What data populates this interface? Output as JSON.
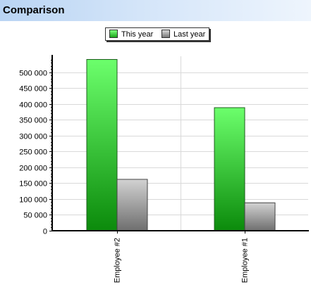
{
  "header": {
    "title": "Comparison"
  },
  "chart_data": {
    "type": "bar",
    "title": "Comparison",
    "categories": [
      "Employee #2",
      "Employee #1"
    ],
    "series": [
      {
        "name": "This year",
        "values": [
          540000,
          388000
        ],
        "color": "#2ecc40"
      },
      {
        "name": "Last year",
        "values": [
          162000,
          88000
        ],
        "color": "#a9a9a9"
      }
    ],
    "ylim": [
      0,
      550000
    ],
    "yticks": [
      0,
      50000,
      100000,
      150000,
      200000,
      250000,
      300000,
      350000,
      400000,
      450000,
      500000
    ],
    "ytick_labels": [
      "0",
      "50 000",
      "100 000",
      "150 000",
      "200 000",
      "250 000",
      "300 000",
      "350 000",
      "400 000",
      "450 000",
      "500 000"
    ],
    "grid": true,
    "legend_position": "top"
  }
}
